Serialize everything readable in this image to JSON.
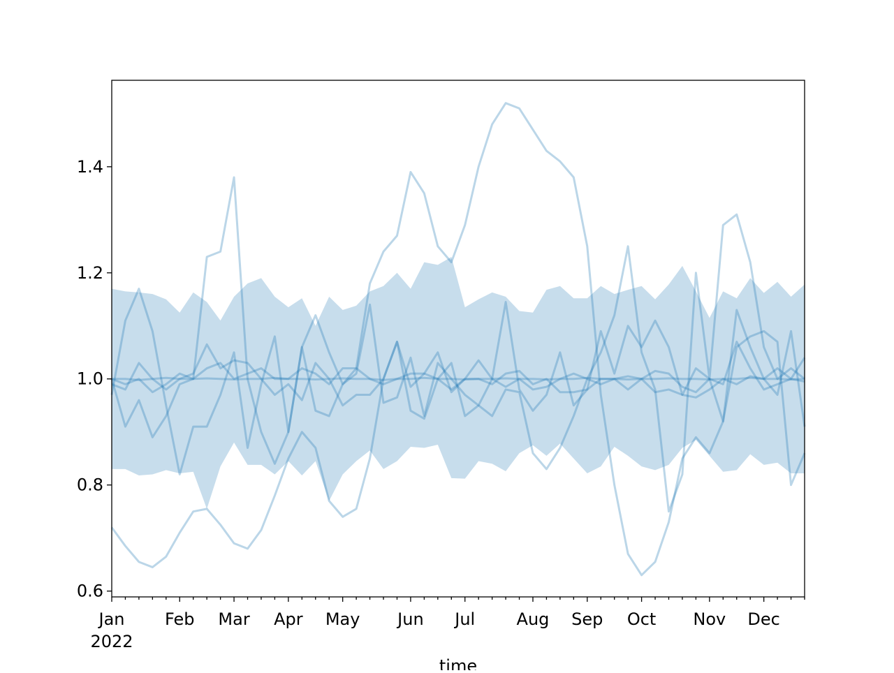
{
  "chart_data": {
    "type": "line",
    "title": "",
    "xlabel": "time",
    "ylabel": "",
    "x_start": "2022-01-02",
    "x_frequency": "weekly",
    "ylim": [
      0.589,
      1.563
    ],
    "yticks": [
      0.6,
      0.8,
      1.0,
      1.2,
      1.4
    ],
    "ytick_labels": [
      "0.6",
      "0.8",
      "1.0",
      "1.2",
      "1.4"
    ],
    "xtick_labels": [
      "Jan",
      "Feb",
      "Mar",
      "Apr",
      "May",
      "Jun",
      "Jul",
      "Aug",
      "Sep",
      "Oct",
      "Nov",
      "Dec"
    ],
    "xtick_year_label": "2022",
    "grid": false,
    "color": "#1f77b4",
    "band": {
      "upper": [
        1.17,
        1.165,
        1.163,
        1.16,
        1.15,
        1.125,
        1.163,
        1.145,
        1.11,
        1.155,
        1.18,
        1.19,
        1.155,
        1.135,
        1.152,
        1.1,
        1.155,
        1.13,
        1.138,
        1.165,
        1.175,
        1.2,
        1.17,
        1.22,
        1.215,
        1.23,
        1.135,
        1.15,
        1.163,
        1.155,
        1.128,
        1.125,
        1.168,
        1.175,
        1.152,
        1.152,
        1.175,
        1.16,
        1.168,
        1.175,
        1.15,
        1.178,
        1.213,
        1.165,
        1.115,
        1.165,
        1.152,
        1.19,
        1.162,
        1.183,
        1.155,
        1.178
      ],
      "lower": [
        0.83,
        0.83,
        0.818,
        0.82,
        0.828,
        0.822,
        0.825,
        0.755,
        0.835,
        0.88,
        0.838,
        0.838,
        0.82,
        0.845,
        0.818,
        0.845,
        0.77,
        0.82,
        0.845,
        0.865,
        0.83,
        0.845,
        0.872,
        0.87,
        0.876,
        0.813,
        0.812,
        0.845,
        0.84,
        0.826,
        0.86,
        0.875,
        0.855,
        0.878,
        0.85,
        0.822,
        0.835,
        0.872,
        0.855,
        0.835,
        0.828,
        0.838,
        0.87,
        0.885,
        0.855,
        0.825,
        0.828,
        0.858,
        0.838,
        0.842,
        0.822,
        0.822
      ]
    },
    "series": [
      {
        "values": [
          1.0,
          0.91,
          0.96,
          0.89,
          0.93,
          0.99,
          1.0,
          1.23,
          1.24,
          1.38,
          1.0,
          0.9,
          0.84,
          0.9,
          1.06,
          1.12,
          1.05,
          0.99,
          1.02,
          1.18,
          1.24,
          1.27,
          1.39,
          1.35,
          1.25,
          1.22,
          1.29,
          1.4,
          1.48,
          1.52,
          1.51,
          1.47,
          1.43,
          1.41,
          1.38,
          1.25,
          0.97,
          0.8,
          0.67,
          0.63,
          0.655,
          0.73,
          0.85,
          0.89,
          0.86,
          0.92,
          1.06,
          1.08,
          1.09,
          1.07,
          0.8,
          0.86
        ]
      },
      {
        "values": [
          0.72,
          0.685,
          0.655,
          0.645,
          0.665,
          0.71,
          0.75,
          0.755,
          0.725,
          0.69,
          0.68,
          0.715,
          0.78,
          0.85,
          0.9,
          0.87,
          0.77,
          0.74,
          0.755,
          0.85,
          1.0,
          1.07,
          0.94,
          0.925,
          1.0,
          1.03,
          0.93,
          0.95,
          0.93,
          0.98,
          0.975,
          0.86,
          0.83,
          0.87,
          0.93,
          1.0,
          1.05,
          1.12,
          1.25,
          1.05,
          0.98,
          0.75,
          0.82,
          1.2,
          1.0,
          1.29,
          1.31,
          1.22,
          1.06,
          1.0,
          1.02,
          1.0
        ]
      },
      {
        "values": [
          0.97,
          1.11,
          1.17,
          1.09,
          0.95,
          0.82,
          0.91,
          0.91,
          0.97,
          1.05,
          0.87,
          0.99,
          1.08,
          0.9,
          1.06,
          0.94,
          0.93,
          0.99,
          1.01,
          1.14,
          0.955,
          0.965,
          1.04,
          0.93,
          1.03,
          1.0,
          0.97,
          0.95,
          1.0,
          1.145,
          0.98,
          0.94,
          0.97,
          1.05,
          0.95,
          0.98,
          1.09,
          1.01,
          1.1,
          1.06,
          1.11,
          1.06,
          0.97,
          1.02,
          1.0,
          0.92,
          1.13,
          1.06,
          1.0,
          0.97,
          1.09,
          0.91
        ]
      },
      {
        "values": [
          0.99,
          0.98,
          1.03,
          1.0,
          0.98,
          1.0,
          1.01,
          1.065,
          1.02,
          1.035,
          1.03,
          1.0,
          0.97,
          0.99,
          0.96,
          1.03,
          1.0,
          0.95,
          0.97,
          0.97,
          1.0,
          1.07,
          0.985,
          1.01,
          1.05,
          0.975,
          1.0,
          1.035,
          1.0,
          0.985,
          1.0,
          0.98,
          0.985,
          1.0,
          1.01,
          1.0,
          0.99,
          1.0,
          0.98,
          1.0,
          1.015,
          1.01,
          0.985,
          0.975,
          1.0,
          0.99,
          1.07,
          1.02,
          0.98,
          0.99,
          1.0,
          1.04
        ]
      },
      {
        "values": [
          1.0,
          0.99,
          1.0,
          0.975,
          0.99,
          1.01,
          1.0,
          1.02,
          1.03,
          1.0,
          1.01,
          1.02,
          1.0,
          1.0,
          1.02,
          1.01,
          0.99,
          1.02,
          1.02,
          1.0,
          0.99,
          1.0,
          1.01,
          1.01,
          1.0,
          0.98,
          1.0,
          1.0,
          0.99,
          1.01,
          1.015,
          0.99,
          1.0,
          0.975,
          0.975,
          0.98,
          1.0,
          1.0,
          1.005,
          1.0,
          0.975,
          0.98,
          0.97,
          0.965,
          0.98,
          1.0,
          0.99,
          1.005,
          1.0,
          1.02,
          1.0,
          0.995
        ]
      },
      {
        "values": [
          1.0,
          1.0,
          0.998,
          1.0,
          1.002,
          1.0,
          1.0,
          1.001,
          1.0,
          0.999,
          1.0,
          1.0,
          1.002,
          1.0,
          1.0,
          0.999,
          1.0,
          1.001,
          1.0,
          1.0,
          0.998,
          1.0,
          1.0,
          1.002,
          1.0,
          1.0,
          0.999,
          1.0,
          1.0,
          1.001,
          1.0,
          1.0,
          0.999,
          1.0,
          1.0,
          1.002,
          1.0,
          1.0,
          0.999,
          1.0,
          1.0,
          1.001,
          1.0,
          1.0,
          0.999,
          1.0,
          1.0,
          1.002,
          1.0,
          1.0,
          0.999,
          1.0
        ]
      }
    ]
  }
}
